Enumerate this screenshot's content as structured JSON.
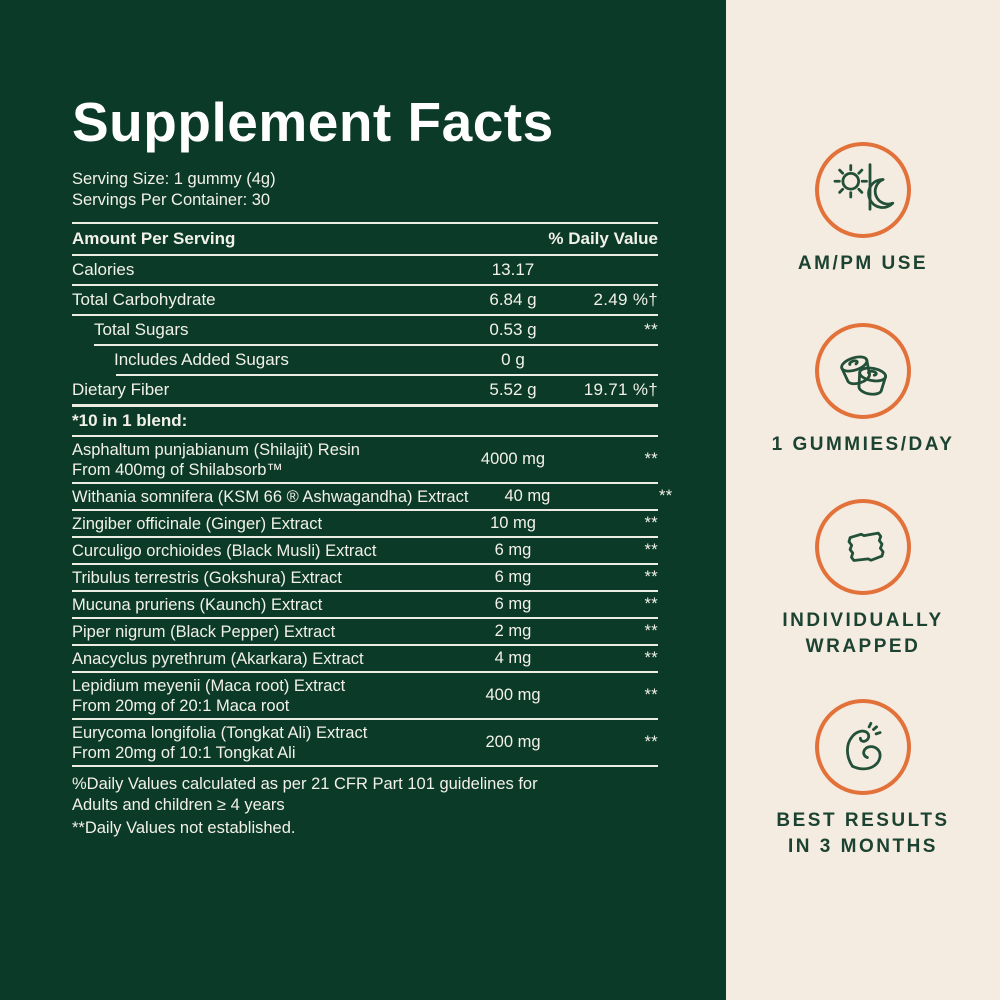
{
  "label": {
    "title": "Supplement Facts",
    "serving_size": "Serving Size: 1 gummy (4g)",
    "servings_per_container": "Servings Per Container: 30",
    "table": {
      "header": {
        "left": "Amount Per Serving",
        "right": "% Daily Value"
      },
      "rows": [
        {
          "label": "Calories",
          "amount": "13.17",
          "dv": "",
          "indent": 0
        },
        {
          "label": "Total Carbohydrate",
          "amount": "6.84 g",
          "dv": "2.49 %†",
          "indent": 0
        },
        {
          "label": "Total Sugars",
          "amount": "0.53 g",
          "dv": "**",
          "indent": 1
        },
        {
          "label": "Includes Added Sugars",
          "amount": "0 g",
          "dv": "",
          "indent": 2
        },
        {
          "label": "Dietary Fiber",
          "amount": "5.52 g",
          "dv": "19.71 %†",
          "indent": 0
        }
      ],
      "blend_heading": "*10 in 1 blend:",
      "blend_rows": [
        {
          "label": "Asphaltum punjabianum (Shilajit) Resin",
          "sub": "From 400mg of Shilabsorb™",
          "amount": "4000 mg",
          "dv": "**"
        },
        {
          "label": "Withania somnifera (KSM 66 ® Ashwagandha) Extract",
          "sub": "",
          "amount": "40 mg",
          "dv": "**"
        },
        {
          "label": "Zingiber officinale (Ginger) Extract",
          "sub": "",
          "amount": "10 mg",
          "dv": "**"
        },
        {
          "label": "Curculigo orchioides (Black Musli) Extract",
          "sub": "",
          "amount": "6 mg",
          "dv": "**"
        },
        {
          "label": "Tribulus terrestris (Gokshura) Extract",
          "sub": "",
          "amount": "6 mg",
          "dv": "**"
        },
        {
          "label": "Mucuna pruriens (Kaunch) Extract",
          "sub": "",
          "amount": "6 mg",
          "dv": "**"
        },
        {
          "label": "Piper nigrum (Black Pepper) Extract",
          "sub": "",
          "amount": "2 mg",
          "dv": "**"
        },
        {
          "label": "Anacyclus pyrethrum (Akarkara) Extract",
          "sub": "",
          "amount": "4 mg",
          "dv": "**"
        },
        {
          "label": "Lepidium meyenii (Maca root) Extract",
          "sub": "From 20mg of 20:1 Maca root",
          "amount": "400 mg",
          "dv": "**"
        },
        {
          "label": "Eurycoma longifolia (Tongkat Ali) Extract",
          "sub": "From 20mg of 10:1 Tongkat Ali",
          "amount": "200 mg",
          "dv": "**"
        }
      ],
      "footnote_1": "%Daily Values calculated as per 21 CFR Part 101 guidelines for\nAdults and children ≥ 4 years",
      "footnote_2": "**Daily Values not established."
    }
  },
  "sidebar": {
    "badges": [
      {
        "icon": "sun-moon-icon",
        "label": "AM/PM USE"
      },
      {
        "icon": "gummies-icon",
        "label": "1 GUMMIES/DAY"
      },
      {
        "icon": "wrapped-sachet-icon",
        "label": "INDIVIDUALLY\nWRAPPED"
      },
      {
        "icon": "bicep-icon",
        "label": "BEST RESULTS\nIN 3 MONTHS"
      }
    ]
  },
  "colors": {
    "background_green": "#0c3a28",
    "background_cream": "#f5ece1",
    "accent_orange": "#e2713a",
    "icon_green": "#235039",
    "text_light": "#f2f1e9"
  }
}
